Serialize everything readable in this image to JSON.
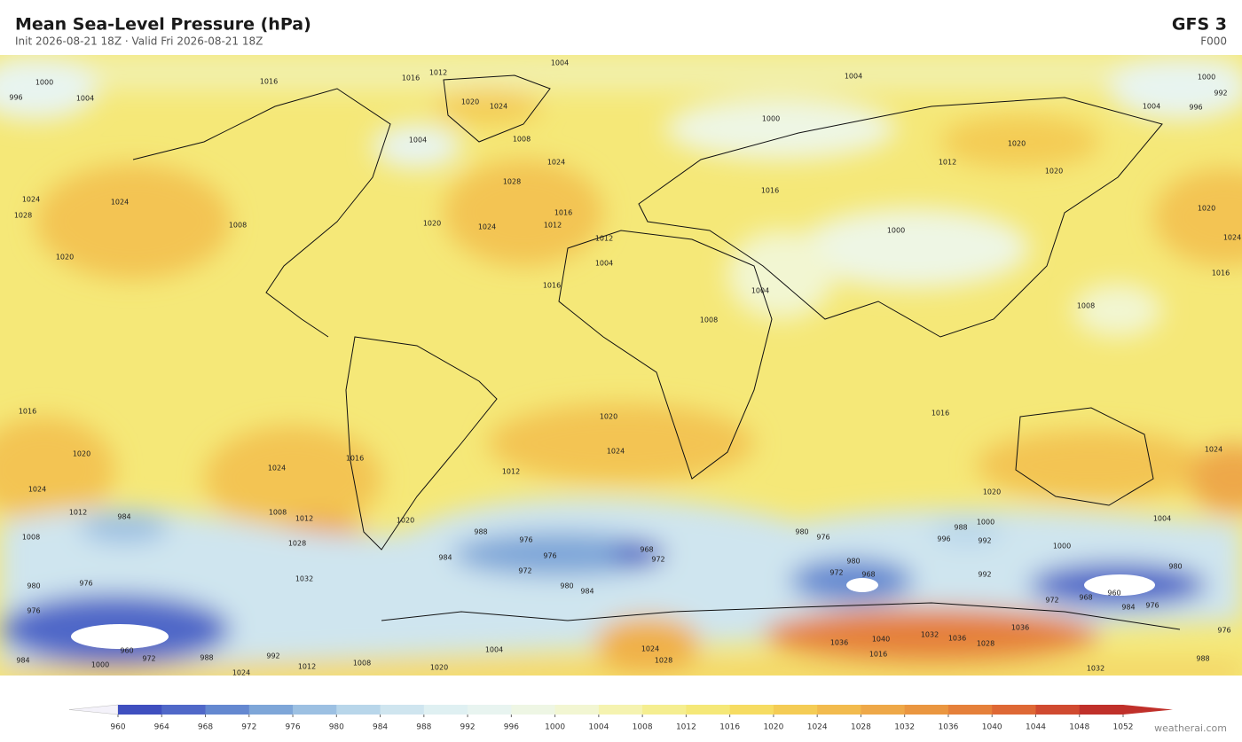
{
  "header": {
    "title": "Mean Sea-Level Pressure  (hPa)",
    "subtitle": "Init 2026-08-21 18Z   ·   Valid Fri 2026-08-21 18Z",
    "model": "GFS  3",
    "forecast_hour": "F000"
  },
  "map": {
    "contour_labels": [
      1004,
      1004,
      1012,
      1016,
      1016,
      1000,
      996,
      1004,
      1000,
      992,
      996,
      1004,
      1020,
      1024,
      1004,
      1008,
      1000,
      1020,
      1012,
      1020,
      1024,
      1028,
      1024,
      1024,
      1028,
      1008,
      1020,
      1024,
      1016,
      1012,
      1020,
      1024,
      1020,
      1016,
      1012,
      1004,
      1000,
      1004,
      1016,
      1016,
      1008,
      1008,
      1016,
      1016,
      1020,
      1024,
      1020,
      1024,
      1016,
      1012,
      1024,
      1012,
      1020,
      1024,
      984,
      1008,
      1008,
      1012,
      1020,
      1028,
      1032,
      988,
      976,
      976,
      984,
      972,
      968,
      972,
      980,
      984,
      980,
      976,
      1000,
      988,
      996,
      992,
      1004,
      1000,
      980,
      972,
      968,
      992,
      980,
      960,
      968,
      972,
      984,
      976,
      980,
      976,
      976,
      960,
      984,
      972,
      988,
      992,
      1000,
      1012,
      1008,
      1020,
      1024,
      1004,
      1024,
      1028,
      1036,
      1040,
      1016,
      1032,
      1036,
      1028,
      1036,
      1032,
      988,
      976
    ]
  },
  "colorbar": {
    "ticks": [
      960,
      964,
      968,
      972,
      976,
      980,
      984,
      988,
      992,
      996,
      1000,
      1004,
      1008,
      1012,
      1016,
      1020,
      1024,
      1028,
      1032,
      1036,
      1040,
      1044,
      1048,
      1052
    ],
    "colors": [
      "#3f4fbf",
      "#5068c8",
      "#6488d0",
      "#7ea6d8",
      "#9cc0e2",
      "#b8d6ea",
      "#cfe5ef",
      "#dff0f2",
      "#e8f4f0",
      "#eef6e4",
      "#f2f6d2",
      "#f5f3b0",
      "#f5ee90",
      "#f5e878",
      "#f6dc62",
      "#f4cc55",
      "#f2bb4e",
      "#eea848",
      "#ea9640",
      "#e5803a",
      "#de6835",
      "#d04a30",
      "#c0302a"
    ],
    "under_color": "#f4f2fa",
    "over_color": "#c0302a"
  },
  "footer": {
    "credit": "weatherai.com"
  }
}
